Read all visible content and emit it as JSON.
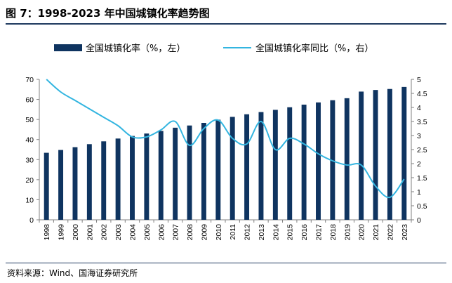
{
  "figure": {
    "title": "图 7：1998-2023 年中国城镇化率趋势图",
    "source": "资料来源：Wind、国海证券研究所"
  },
  "colors": {
    "bar": "#0f3460",
    "line": "#33b5e0",
    "axis": "#808080"
  },
  "chart_data": {
    "type": "bar",
    "categories": [
      "1998",
      "1999",
      "2000",
      "2001",
      "2002",
      "2003",
      "2004",
      "2005",
      "2006",
      "2007",
      "2008",
      "2009",
      "2010",
      "2011",
      "2012",
      "2013",
      "2014",
      "2015",
      "2016",
      "2017",
      "2018",
      "2019",
      "2020",
      "2021",
      "2022",
      "2023"
    ],
    "series": [
      {
        "name": "全国城镇化率（%，左）",
        "type": "bar",
        "axis": "left",
        "values": [
          33.4,
          34.8,
          36.2,
          37.7,
          39.1,
          40.5,
          41.8,
          43.0,
          44.3,
          45.9,
          47.0,
          48.3,
          49.9,
          51.3,
          52.6,
          53.7,
          54.8,
          56.1,
          57.4,
          58.5,
          59.6,
          60.6,
          63.9,
          64.7,
          65.2,
          66.2
        ]
      },
      {
        "name": "全国城镇化率同比（%，右）",
        "type": "line",
        "axis": "right",
        "values": [
          5.0,
          4.55,
          4.25,
          3.95,
          3.65,
          3.35,
          2.95,
          2.95,
          3.2,
          3.5,
          2.65,
          3.25,
          3.55,
          2.9,
          2.7,
          3.5,
          2.5,
          2.9,
          2.7,
          2.35,
          2.1,
          1.95,
          1.95,
          1.2,
          0.8,
          1.45
        ]
      }
    ],
    "left_axis": {
      "ylim": [
        0,
        70
      ],
      "ticks": [
        "0",
        "10",
        "20",
        "30",
        "40",
        "50",
        "60",
        "70"
      ]
    },
    "right_axis": {
      "ylim": [
        0,
        5
      ],
      "ticks": [
        "0",
        "0.5",
        "1",
        "1.5",
        "2",
        "2.5",
        "3",
        "3.5",
        "4",
        "4.5",
        "5"
      ]
    },
    "legend": {
      "placement": "top"
    },
    "grid": false
  }
}
